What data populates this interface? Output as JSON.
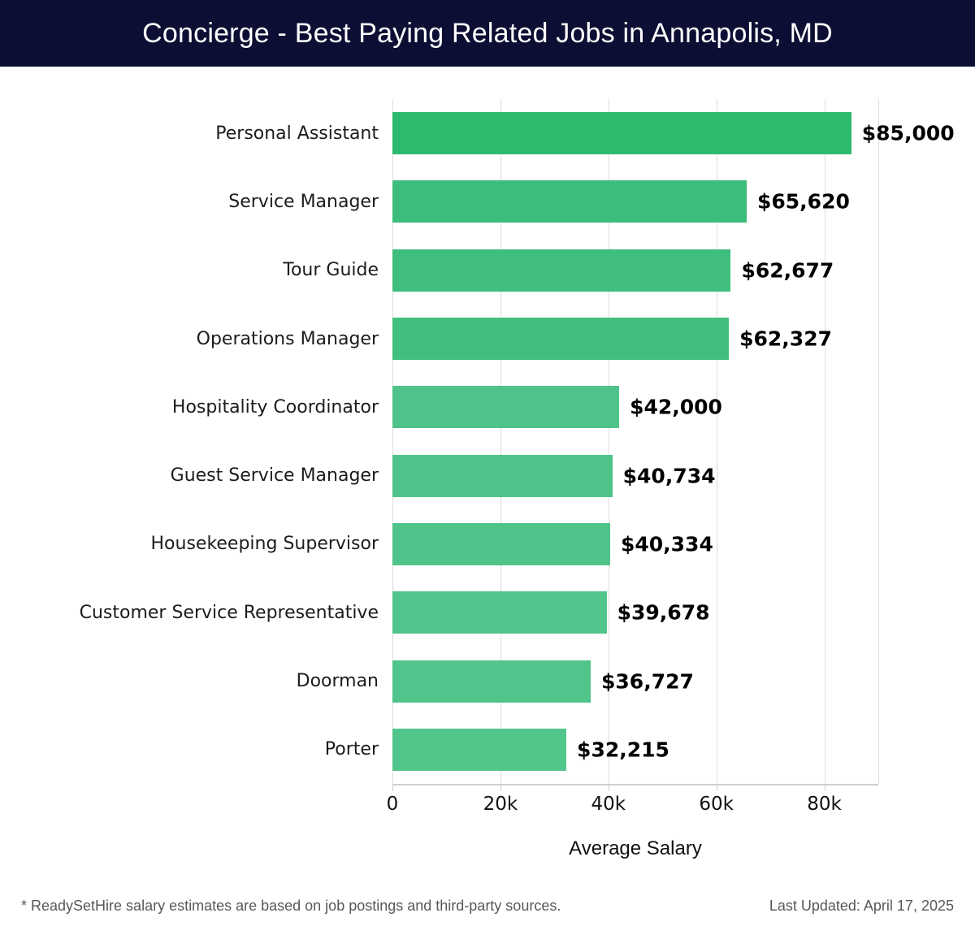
{
  "header": {
    "title": "Concierge - Best Paying Related Jobs in Annapolis, MD",
    "bg_color": "#0c0e33",
    "text_color": "#ffffff"
  },
  "chart_data": {
    "type": "bar",
    "orientation": "horizontal",
    "title": "Concierge - Best Paying Related Jobs in Annapolis, MD",
    "categories": [
      "Personal Assistant",
      "Service Manager",
      "Tour Guide",
      "Operations Manager",
      "Hospitality Coordinator",
      "Guest Service Manager",
      "Housekeeping Supervisor",
      "Customer Service Representative",
      "Doorman",
      "Porter"
    ],
    "values": [
      85000,
      65620,
      62677,
      62327,
      42000,
      40734,
      40334,
      39678,
      36727,
      32215
    ],
    "value_labels": [
      "$85,000",
      "$65,620",
      "$62,677",
      "$62,327",
      "$42,000",
      "$40,734",
      "$40,334",
      "$39,678",
      "$36,727",
      "$32,215"
    ],
    "bar_colors": [
      "#2dba6e",
      "#3dbd7c",
      "#3fbe7d",
      "#40bf7e",
      "#4fc38a",
      "#4fc38a",
      "#4fc38a",
      "#50c48a",
      "#51c48b",
      "#52c58b"
    ],
    "xlabel": "Average Salary",
    "xlim": [
      0,
      90000
    ],
    "x_ticks": [
      {
        "value": 0,
        "label": "0"
      },
      {
        "value": 20000,
        "label": "20k"
      },
      {
        "value": 40000,
        "label": "40k"
      },
      {
        "value": 60000,
        "label": "60k"
      },
      {
        "value": 80000,
        "label": "80k"
      }
    ],
    "gridlines": [
      0,
      20000,
      40000,
      60000,
      80000,
      90000
    ],
    "grid": true,
    "gridline_color": "#dcdcdc",
    "legend": "none"
  },
  "footer": {
    "note": "* ReadySetHire salary estimates are based on job postings and third-party sources.",
    "last_updated": "Last Updated: April 17, 2025"
  }
}
